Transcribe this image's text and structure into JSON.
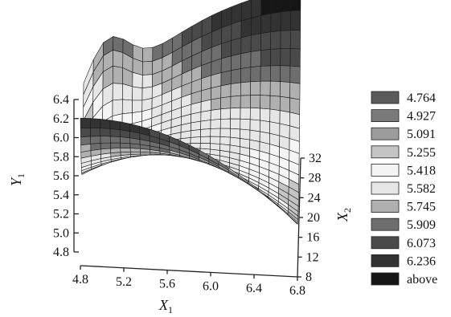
{
  "chart_data": {
    "type": "surface3d",
    "axes": {
      "x": {
        "label": "X",
        "sub": "1",
        "ticks": [
          "4.8",
          "5.2",
          "5.6",
          "6.0",
          "6.4",
          "6.8"
        ],
        "range": [
          4.8,
          6.8
        ]
      },
      "z": {
        "label": "X",
        "sub": "2",
        "ticks": [
          "8",
          "12",
          "16",
          "20",
          "24",
          "28",
          "32"
        ],
        "range": [
          8,
          32
        ]
      },
      "y": {
        "label": "Y",
        "sub": "1",
        "ticks": [
          "4.8",
          "5.0",
          "5.2",
          "5.4",
          "5.6",
          "5.8",
          "6.0",
          "6.2",
          "6.4"
        ],
        "range": [
          4.8,
          6.4
        ]
      }
    },
    "legend": {
      "placement": "right",
      "items": [
        {
          "label": "4.764",
          "color": "#5a5a5a"
        },
        {
          "label": "4.927",
          "color": "#7a7a7a"
        },
        {
          "label": "5.091",
          "color": "#9c9c9c"
        },
        {
          "label": "5.255",
          "color": "#c4c4c4"
        },
        {
          "label": "5.418",
          "color": "#f4f4f4"
        },
        {
          "label": "5.582",
          "color": "#e6e6e6"
        },
        {
          "label": "5.745",
          "color": "#b0b0b0"
        },
        {
          "label": "5.909",
          "color": "#6e6e6e"
        },
        {
          "label": "6.073",
          "color": "#4a4a4a"
        },
        {
          "label": "6.236",
          "color": "#333333"
        },
        {
          "label": "above",
          "color": "#161616"
        }
      ]
    },
    "surface": {
      "description_values": "saddle-shaped response surface of Y1 over X1 and X2",
      "min_y": 4.9,
      "max_y": 6.4
    }
  }
}
